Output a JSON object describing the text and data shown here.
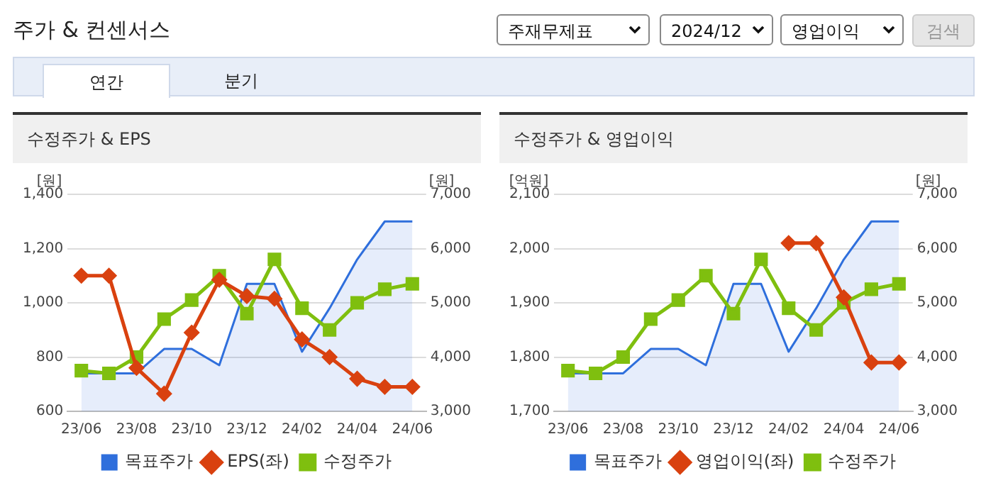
{
  "chart_data": [
    {
      "type": "other",
      "title": "주가 & 컨센서스",
      "annotations": [
        "주재무제표",
        "2024/12",
        "영업이익",
        "검색",
        "연간",
        "분기"
      ]
    },
    {
      "type": "line",
      "title": "수정주가 & EPS",
      "ylabel": "[원]",
      "y2label": "[원]",
      "categories": [
        "23/06",
        null,
        "23/08",
        null,
        "23/10",
        null,
        "23/12",
        null,
        "24/02",
        null,
        "24/04",
        null,
        "24/06"
      ],
      "series": [
        {
          "name": "목표주가",
          "type": "area",
          "axis": "y2",
          "marker": "none",
          "color": "#2f6fdc",
          "values": [
            3700,
            3700,
            3700,
            4150,
            4150,
            3850,
            5350,
            5350,
            4100,
            4900,
            5800,
            6500,
            6500
          ]
        },
        {
          "name": "EPS(좌)",
          "type": "line",
          "axis": "y",
          "marker": "diamond",
          "color": "#d9410f",
          "values": [
            1100,
            1100,
            760,
            665,
            890,
            1085,
            1025,
            1015,
            865,
            800,
            720,
            690,
            690
          ]
        },
        {
          "name": "수정주가",
          "type": "line",
          "axis": "y2",
          "marker": "square",
          "color": "#7fbf0f",
          "values": [
            3750,
            3700,
            4000,
            4700,
            5050,
            5500,
            4800,
            5800,
            4900,
            4500,
            5000,
            5250,
            5350
          ]
        }
      ],
      "ylim": [
        600,
        1400
      ],
      "yticks": [
        {
          "value": 600,
          "label": "600"
        },
        {
          "value": 800,
          "label": "800"
        },
        {
          "value": 1000,
          "label": "1,000"
        },
        {
          "value": 1200,
          "label": "1,200"
        },
        {
          "value": 1400,
          "label": "1,400"
        }
      ],
      "y2lim": [
        3000,
        7000
      ],
      "y2ticks": [
        {
          "value": 3000,
          "label": "3,000"
        },
        {
          "value": 4000,
          "label": "4,000"
        },
        {
          "value": 5000,
          "label": "5,000"
        },
        {
          "value": 6000,
          "label": "6,000"
        },
        {
          "value": 7000,
          "label": "7,000"
        }
      ],
      "grid": "y",
      "legend": "bottom"
    },
    {
      "type": "line",
      "title": "수정주가 & 영업이익",
      "ylabel": "[억원]",
      "y2label": "[원]",
      "categories": [
        "23/06",
        null,
        "23/08",
        null,
        "23/10",
        null,
        "23/12",
        null,
        "24/02",
        null,
        "24/04",
        null,
        "24/06"
      ],
      "series": [
        {
          "name": "목표주가",
          "type": "area",
          "axis": "y2",
          "marker": "none",
          "color": "#2f6fdc",
          "values": [
            3700,
            3700,
            3700,
            4150,
            4150,
            3850,
            5350,
            5350,
            4100,
            4900,
            5800,
            6500,
            6500
          ]
        },
        {
          "name": "영업이익(좌)",
          "type": "line",
          "axis": "y",
          "marker": "diamond",
          "color": "#d9410f",
          "values": [
            null,
            null,
            null,
            null,
            null,
            null,
            null,
            null,
            2010,
            2010,
            1910,
            1790,
            1790
          ]
        },
        {
          "name": "수정주가",
          "type": "line",
          "axis": "y2",
          "marker": "square",
          "color": "#7fbf0f",
          "values": [
            3750,
            3700,
            4000,
            4700,
            5050,
            5500,
            4800,
            5800,
            4900,
            4500,
            5000,
            5250,
            5350
          ]
        }
      ],
      "ylim": [
        1700,
        2100
      ],
      "yticks": [
        {
          "value": 1700,
          "label": "1,700"
        },
        {
          "value": 1800,
          "label": "1,800"
        },
        {
          "value": 1900,
          "label": "1,900"
        },
        {
          "value": 2000,
          "label": "2,000"
        },
        {
          "value": 2100,
          "label": "2,100"
        }
      ],
      "y2lim": [
        3000,
        7000
      ],
      "y2ticks": [
        {
          "value": 3000,
          "label": "3,000"
        },
        {
          "value": 4000,
          "label": "4,000"
        },
        {
          "value": 5000,
          "label": "5,000"
        },
        {
          "value": 6000,
          "label": "6,000"
        },
        {
          "value": 7000,
          "label": "7,000"
        }
      ],
      "grid": "y",
      "legend": "bottom"
    }
  ]
}
